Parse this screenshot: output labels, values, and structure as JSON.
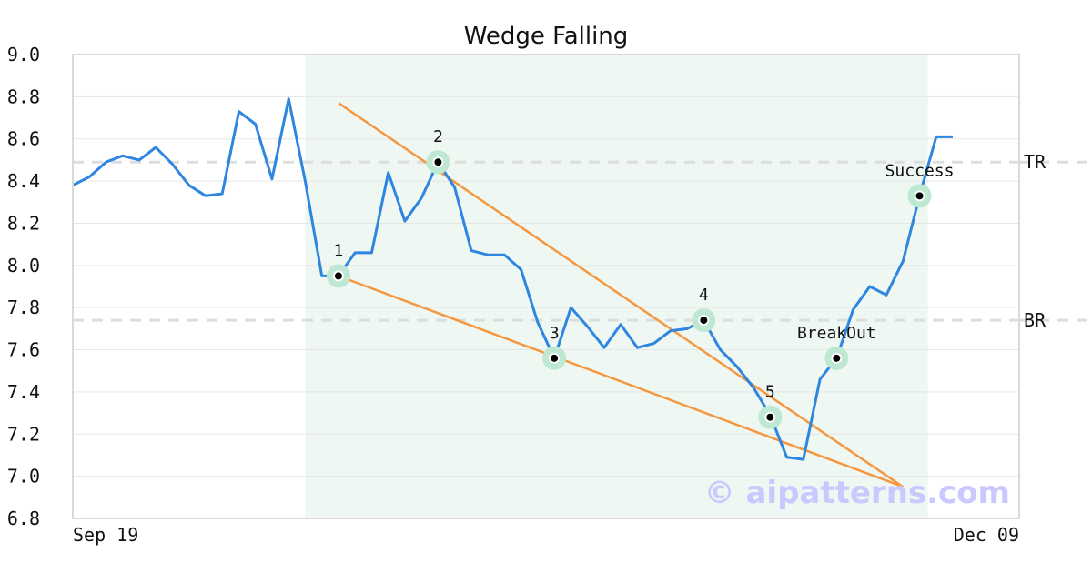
{
  "chart_data": {
    "type": "line",
    "title": "Wedge Falling",
    "xlabel": "",
    "ylabel": "",
    "ylim": [
      6.8,
      9.0
    ],
    "xlim": [
      0,
      57
    ],
    "y_ticks": [
      "6.8",
      "7.0",
      "7.2",
      "7.4",
      "7.6",
      "7.8",
      "8.0",
      "8.2",
      "8.4",
      "8.6",
      "8.8",
      "9.0"
    ],
    "x_tick_labels": [
      {
        "x": 0,
        "label": "Sep 19"
      },
      {
        "x": 57,
        "label": "Dec 09"
      }
    ],
    "grid": "horizontal",
    "series": [
      {
        "color": "#2f86e0",
        "x": [
          0,
          1,
          2,
          3,
          4,
          5,
          6,
          7,
          8,
          9,
          10,
          11,
          12,
          13,
          14,
          15,
          16,
          17,
          18,
          19,
          20,
          21,
          22,
          23,
          24,
          25,
          26,
          27,
          28,
          29,
          30,
          31,
          32,
          33,
          34,
          35,
          36,
          37,
          38,
          39,
          40,
          41,
          42,
          43,
          44,
          45,
          46,
          47,
          48,
          49,
          50,
          51,
          52,
          53
        ],
        "values": [
          8.38,
          8.42,
          8.49,
          8.52,
          8.5,
          8.56,
          8.48,
          8.38,
          8.33,
          8.34,
          8.73,
          8.67,
          8.41,
          8.79,
          8.4,
          7.95,
          7.95,
          8.06,
          8.06,
          8.44,
          8.21,
          8.32,
          8.49,
          8.37,
          8.07,
          8.05,
          8.05,
          7.98,
          7.73,
          7.56,
          7.8,
          7.71,
          7.61,
          7.72,
          7.61,
          7.63,
          7.69,
          7.7,
          7.74,
          7.6,
          7.52,
          7.42,
          7.29,
          7.09,
          7.08,
          7.46,
          7.56,
          7.79,
          7.9,
          7.86,
          8.02,
          8.33,
          8.61,
          8.61
        ]
      }
    ],
    "trendlines": [
      {
        "color": "#f5973f",
        "points": [
          [
            16,
            8.77
          ],
          [
            50,
            6.95
          ]
        ]
      },
      {
        "color": "#f5973f",
        "points": [
          [
            16,
            7.95
          ],
          [
            50,
            6.95
          ]
        ]
      }
    ],
    "horizontal_lines": [
      {
        "label": "TR",
        "y": 8.49,
        "color": "#dddddd"
      },
      {
        "label": "BR",
        "y": 7.74,
        "color": "#dddddd"
      }
    ],
    "shaded_region": {
      "x_start": 14,
      "x_end": 51.5,
      "color": "#eef7f2"
    },
    "annotations": [
      {
        "label": "1",
        "x": 16,
        "y": 7.95
      },
      {
        "label": "2",
        "x": 22,
        "y": 8.49
      },
      {
        "label": "3",
        "x": 29,
        "y": 7.56
      },
      {
        "label": "4",
        "x": 38,
        "y": 7.74
      },
      {
        "label": "5",
        "x": 42,
        "y": 7.28
      },
      {
        "label": "BreakOut",
        "x": 46,
        "y": 7.56
      },
      {
        "label": "Success",
        "x": 51,
        "y": 8.33
      }
    ],
    "watermark": "© aipatterns.com"
  }
}
